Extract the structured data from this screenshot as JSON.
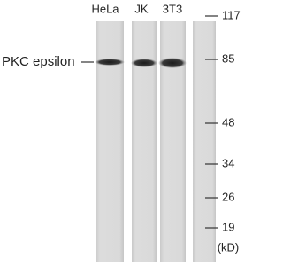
{
  "blot": {
    "lanes": [
      "HeLa",
      "JK",
      "3T3"
    ],
    "protein": "PKC epsilon",
    "markers": [
      "117",
      "85",
      "48",
      "34",
      "26",
      "19"
    ],
    "unit": "(kD)"
  }
}
